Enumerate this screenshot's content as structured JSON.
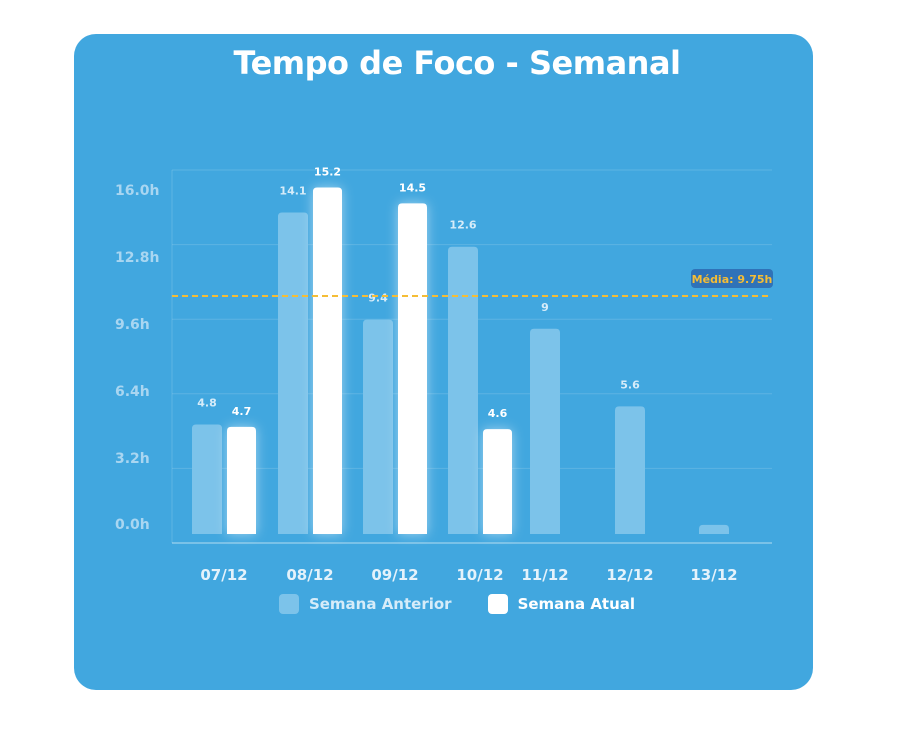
{
  "chart_data": {
    "type": "bar",
    "title": "Tempo de Foco - Semanal",
    "categories": [
      "07/12",
      "08/12",
      "09/12",
      "10/12",
      "11/12",
      "12/12",
      "13/12"
    ],
    "y_ticks": [
      "0.0h",
      "3.2h",
      "6.4h",
      "9.6h",
      "12.8h",
      "16.0h"
    ],
    "ylim": [
      0,
      16
    ],
    "grid": true,
    "legend_placement": "bottom",
    "series": [
      {
        "name": "Semana Anterior",
        "values": [
          4.8,
          14.1,
          9.4,
          12.6,
          9,
          5.6,
          0.4
        ],
        "labels": [
          "4.8",
          "14.1",
          "9.4",
          "12.6",
          "9",
          "5.6",
          ""
        ],
        "color": "#7cc3ea"
      },
      {
        "name": "Semana Atual",
        "values": [
          4.7,
          15.2,
          14.5,
          4.6,
          null,
          null,
          null
        ],
        "labels": [
          "4.7",
          "15.2",
          "14.5",
          "4.6",
          "",
          "",
          ""
        ],
        "color": "#ffffff"
      }
    ],
    "average": {
      "value": 9.75,
      "label": "Média: 9.75h",
      "color": "#f5bd35"
    }
  }
}
